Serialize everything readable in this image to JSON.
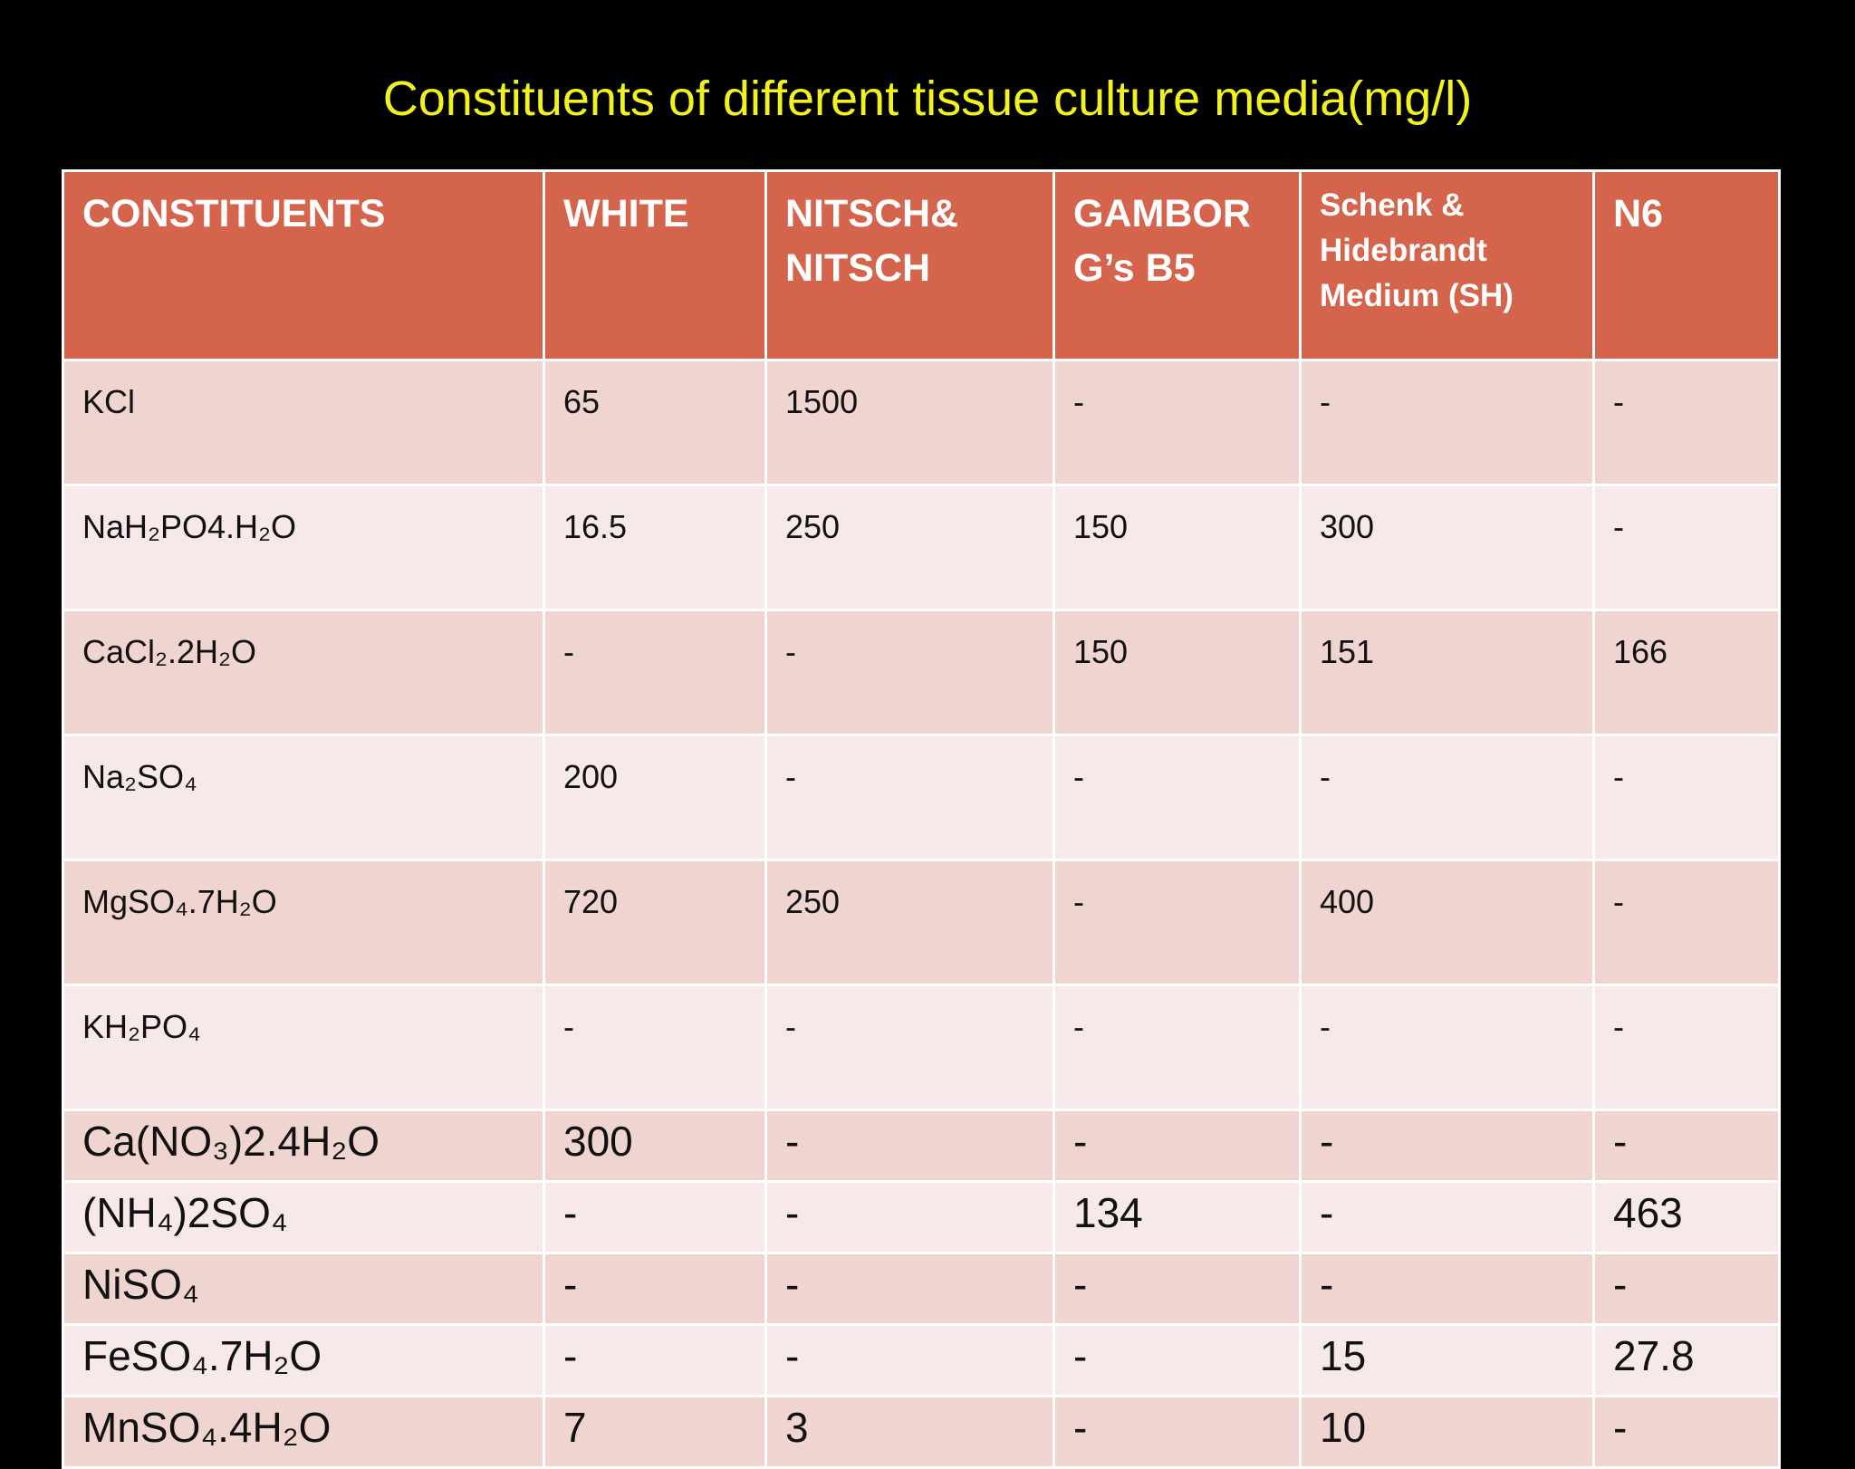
{
  "title": "Constituents of different tissue culture media(mg/l)",
  "table": {
    "header": [
      "CONSTITUENTS",
      "WHITE",
      "NITSCH& NITSCH",
      "GAMBOR G’s B5",
      "Schenk & Hidebrandt Medium (SH)",
      "N6"
    ],
    "rows": [
      [
        "KCl",
        "65",
        "1500",
        "-",
        "-",
        "-"
      ],
      [
        "NaH₂PO4.H₂O",
        "16.5",
        "250",
        "150",
        "300",
        "-"
      ],
      [
        "CaCl₂.2H₂O",
        "-",
        "-",
        "150",
        "151",
        "166"
      ],
      [
        "Na₂SO₄",
        "200",
        "-",
        "-",
        "-",
        "-"
      ],
      [
        "MgSO₄.7H₂O",
        "720",
        "250",
        "-",
        "400",
        "-"
      ],
      [
        "KH₂PO₄",
        "-",
        "-",
        "-",
        "-",
        "-"
      ],
      [
        "Ca(NO₃)2.4H₂O",
        "300",
        "-",
        "-",
        "-",
        "-"
      ],
      [
        "(NH₄)2SO₄",
        "-",
        "-",
        "134",
        "-",
        "463"
      ],
      [
        "NiSO₄",
        "-",
        "-",
        "-",
        "-",
        "-"
      ],
      [
        "FeSO₄.7H₂O",
        "-",
        "-",
        "-",
        "15",
        "27.8"
      ],
      [
        "MnSO₄.4H₂O",
        "7",
        "3",
        "-",
        "10",
        "-"
      ]
    ]
  }
}
